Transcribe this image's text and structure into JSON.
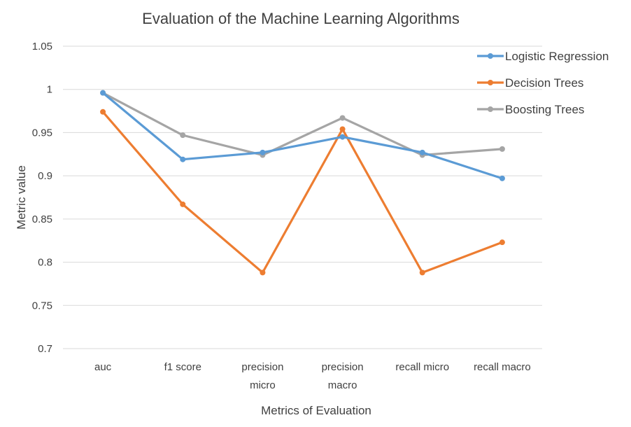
{
  "chart_data": {
    "type": "line",
    "title": "Evaluation of the Machine Learning Algorithms",
    "xlabel": "Metrics of Evaluation",
    "ylabel": "Metric value",
    "categories": [
      "auc",
      "f1 score",
      "precision micro",
      "precision macro",
      "recall micro",
      "recall macro"
    ],
    "category_lines": [
      [
        "auc"
      ],
      [
        "f1 score"
      ],
      [
        "precision",
        "micro"
      ],
      [
        "precision",
        "macro"
      ],
      [
        "recall micro"
      ],
      [
        "recall macro"
      ]
    ],
    "y_ticks": [
      "0.7",
      "0.75",
      "0.8",
      "0.85",
      "0.9",
      "0.95",
      "1",
      "1.05"
    ],
    "ylim": [
      0.7,
      1.05
    ],
    "grid": true,
    "legend_position": "top-right",
    "series": [
      {
        "name": "Logistic Regression",
        "color": "#5b9bd5",
        "values": [
          0.996,
          0.919,
          0.927,
          0.945,
          0.927,
          0.897
        ]
      },
      {
        "name": "Decision Trees",
        "color": "#ed7d31",
        "values": [
          0.974,
          0.867,
          0.788,
          0.954,
          0.788,
          0.823
        ]
      },
      {
        "name": "Boosting Trees",
        "color": "#a5a5a5",
        "values": [
          0.996,
          0.947,
          0.924,
          0.967,
          0.924,
          0.931
        ]
      }
    ]
  }
}
